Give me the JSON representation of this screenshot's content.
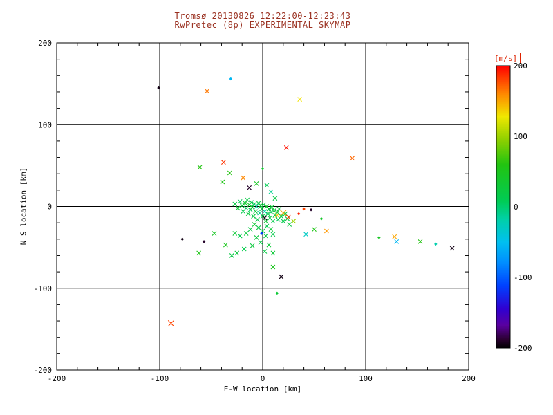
{
  "chart_data": {
    "type": "scatter",
    "title": "Tromsø 20130826 12:22:00-12:23:43",
    "subtitle": "RwPretec (8p) EXPERIMENTAL SKYMAP",
    "xlabel": "E-W location [km]",
    "ylabel": "N-S location [km]",
    "xlim": [
      -200,
      200
    ],
    "ylim": [
      -200,
      200
    ],
    "xticks": [
      -200,
      -100,
      0,
      100,
      200
    ],
    "yticks": [
      -200,
      -100,
      0,
      100,
      200
    ],
    "grid": [
      -100,
      0,
      100
    ],
    "minor_tick_step": 20,
    "marker": "x",
    "color_by": "velocity_mps",
    "points": [
      {
        "x": -101,
        "y": 145,
        "v": -195,
        "m": "d"
      },
      {
        "x": -54,
        "y": 141,
        "v": 165
      },
      {
        "x": -31,
        "y": 156,
        "v": -55,
        "m": "d"
      },
      {
        "x": 36,
        "y": 131,
        "v": 130
      },
      {
        "x": 23,
        "y": 72,
        "v": 195
      },
      {
        "x": 87,
        "y": 59,
        "v": 170
      },
      {
        "x": -38,
        "y": 54,
        "v": 185
      },
      {
        "x": -61,
        "y": 48,
        "v": 60
      },
      {
        "x": -39,
        "y": 30,
        "v": 55
      },
      {
        "x": -32,
        "y": 41,
        "v": 60
      },
      {
        "x": -19,
        "y": 35,
        "v": 160
      },
      {
        "x": -13,
        "y": 23,
        "v": -190
      },
      {
        "x": -6,
        "y": 28,
        "v": 45
      },
      {
        "x": 4,
        "y": 26,
        "v": 10
      },
      {
        "x": 0,
        "y": 46,
        "v": 35,
        "m": "d"
      },
      {
        "x": 8,
        "y": 18,
        "v": -10
      },
      {
        "x": 12,
        "y": 10,
        "v": 20
      },
      {
        "x": -27,
        "y": 3,
        "v": 20
      },
      {
        "x": -24,
        "y": -2,
        "v": 30
      },
      {
        "x": -22,
        "y": 6,
        "v": 10
      },
      {
        "x": -20,
        "y": 1,
        "v": 25
      },
      {
        "x": -19,
        "y": -6,
        "v": 15
      },
      {
        "x": -17,
        "y": 4,
        "v": 35
      },
      {
        "x": -16,
        "y": -2,
        "v": 5
      },
      {
        "x": -15,
        "y": 8,
        "v": 20
      },
      {
        "x": -14,
        "y": -9,
        "v": 25
      },
      {
        "x": -13,
        "y": 2,
        "v": 40
      },
      {
        "x": -12,
        "y": -4,
        "v": 10
      },
      {
        "x": -11,
        "y": 5,
        "v": 15
      },
      {
        "x": -10,
        "y": -1,
        "v": 30
      },
      {
        "x": -9,
        "y": -12,
        "v": 20
      },
      {
        "x": -8,
        "y": 3,
        "v": 10
      },
      {
        "x": -7,
        "y": -6,
        "v": 25
      },
      {
        "x": -6,
        "y": 0,
        "v": -15
      },
      {
        "x": -5,
        "y": -16,
        "v": 15
      },
      {
        "x": -4,
        "y": 4,
        "v": 20
      },
      {
        "x": -3,
        "y": -8,
        "v": -10
      },
      {
        "x": -2,
        "y": 1,
        "v": 30
      },
      {
        "x": -1,
        "y": -3,
        "v": 25
      },
      {
        "x": 0,
        "y": -12,
        "v": 15
      },
      {
        "x": 1,
        "y": 2,
        "v": 20
      },
      {
        "x": 2,
        "y": -6,
        "v": -20
      },
      {
        "x": 3,
        "y": -18,
        "v": 30
      },
      {
        "x": 4,
        "y": 0,
        "v": 40
      },
      {
        "x": 5,
        "y": -9,
        "v": 15
      },
      {
        "x": 6,
        "y": -3,
        "v": 25
      },
      {
        "x": 7,
        "y": -14,
        "v": 20
      },
      {
        "x": 8,
        "y": -7,
        "v": 10
      },
      {
        "x": 9,
        "y": -1,
        "v": 30
      },
      {
        "x": 10,
        "y": -18,
        "v": 15
      },
      {
        "x": 11,
        "y": -5,
        "v": 25
      },
      {
        "x": 12,
        "y": -11,
        "v": 20
      },
      {
        "x": 14,
        "y": -7,
        "v": 35
      },
      {
        "x": 15,
        "y": -16,
        "v": 10
      },
      {
        "x": 16,
        "y": -3,
        "v": 25
      },
      {
        "x": 18,
        "y": -12,
        "v": 20
      },
      {
        "x": 20,
        "y": -18,
        "v": 15
      },
      {
        "x": 22,
        "y": -9,
        "v": 30
      },
      {
        "x": 24,
        "y": -15,
        "v": 20
      },
      {
        "x": 26,
        "y": -22,
        "v": 25
      },
      {
        "x": -8,
        "y": -22,
        "v": 30
      },
      {
        "x": -4,
        "y": -26,
        "v": 20
      },
      {
        "x": 0,
        "y": -30,
        "v": 25
      },
      {
        "x": 4,
        "y": -24,
        "v": 15
      },
      {
        "x": 8,
        "y": -28,
        "v": 30
      },
      {
        "x": -12,
        "y": -28,
        "v": 20
      },
      {
        "x": -16,
        "y": -33,
        "v": 25
      },
      {
        "x": -22,
        "y": -36,
        "v": 15
      },
      {
        "x": -27,
        "y": -33,
        "v": 30
      },
      {
        "x": 3,
        "y": -36,
        "v": 20
      },
      {
        "x": -6,
        "y": -38,
        "v": 25
      },
      {
        "x": 10,
        "y": -34,
        "v": 15
      },
      {
        "x": -2,
        "y": -44,
        "v": 20
      },
      {
        "x": 6,
        "y": -47,
        "v": 30
      },
      {
        "x": -10,
        "y": -48,
        "v": 25
      },
      {
        "x": -18,
        "y": -52,
        "v": 15
      },
      {
        "x": 2,
        "y": -55,
        "v": 20
      },
      {
        "x": -25,
        "y": -57,
        "v": 25
      },
      {
        "x": 10,
        "y": -57,
        "v": 30
      },
      {
        "x": -30,
        "y": -60,
        "v": 20
      },
      {
        "x": -1,
        "y": -33,
        "v": -110,
        "m": "d"
      },
      {
        "x": 20,
        "y": -8,
        "v": 150,
        "s": 2
      },
      {
        "x": 25,
        "y": -13,
        "v": 185
      },
      {
        "x": 14,
        "y": -11,
        "v": 140
      },
      {
        "x": 30,
        "y": -18,
        "v": 100
      },
      {
        "x": 35,
        "y": -9,
        "v": 190,
        "m": "d"
      },
      {
        "x": 40,
        "y": -3,
        "v": 180,
        "m": "d"
      },
      {
        "x": 47,
        "y": -4,
        "v": -190,
        "m": "d"
      },
      {
        "x": 2,
        "y": -14,
        "v": -195
      },
      {
        "x": 62,
        "y": -30,
        "v": 155
      },
      {
        "x": 50,
        "y": -28,
        "v": 55
      },
      {
        "x": 42,
        "y": -34,
        "v": -30
      },
      {
        "x": 57,
        "y": -15,
        "v": 40,
        "m": "d"
      },
      {
        "x": -47,
        "y": -33,
        "v": 45
      },
      {
        "x": -36,
        "y": -47,
        "v": 50
      },
      {
        "x": -57,
        "y": -43,
        "v": -190,
        "m": "d"
      },
      {
        "x": -78,
        "y": -40,
        "v": -195,
        "m": "d"
      },
      {
        "x": -62,
        "y": -57,
        "v": 55
      },
      {
        "x": -89,
        "y": -143,
        "v": 180,
        "s": 2
      },
      {
        "x": 14,
        "y": -106,
        "v": 30,
        "m": "d"
      },
      {
        "x": 18,
        "y": -86,
        "v": -195
      },
      {
        "x": 10,
        "y": -74,
        "v": 50
      },
      {
        "x": 113,
        "y": -38,
        "v": 45,
        "m": "d"
      },
      {
        "x": 128,
        "y": -37,
        "v": 150
      },
      {
        "x": 130,
        "y": -43,
        "v": -55
      },
      {
        "x": 153,
        "y": -43,
        "v": 60
      },
      {
        "x": 168,
        "y": -46,
        "v": -20,
        "m": "d"
      },
      {
        "x": 184,
        "y": -51,
        "v": -195
      }
    ]
  },
  "colorbar": {
    "label": "[m/s]",
    "ticks": [
      200,
      100,
      0,
      -100,
      -200
    ],
    "min": -200,
    "max": 200,
    "stops": [
      {
        "t": 200,
        "c": "#ff0000"
      },
      {
        "t": 185,
        "c": "#ff3300"
      },
      {
        "t": 160,
        "c": "#ff8800"
      },
      {
        "t": 128,
        "c": "#f0e800"
      },
      {
        "t": 95,
        "c": "#8ed000"
      },
      {
        "t": 60,
        "c": "#22c410"
      },
      {
        "t": 8,
        "c": "#00cc55"
      },
      {
        "t": -18,
        "c": "#00d0a8"
      },
      {
        "t": -50,
        "c": "#00c0f0"
      },
      {
        "t": -78,
        "c": "#0090ff"
      },
      {
        "t": -112,
        "c": "#0040ff"
      },
      {
        "t": -145,
        "c": "#3000d0"
      },
      {
        "t": -168,
        "c": "#5a00a0"
      },
      {
        "t": -188,
        "c": "#2a0030"
      },
      {
        "t": -200,
        "c": "#000000"
      }
    ]
  },
  "colors": {
    "title_text": "#9a3020",
    "colorbar_text": "#b03010",
    "units_text": "#dd2200",
    "axis_text": "#000000",
    "background": "#ffffff"
  }
}
